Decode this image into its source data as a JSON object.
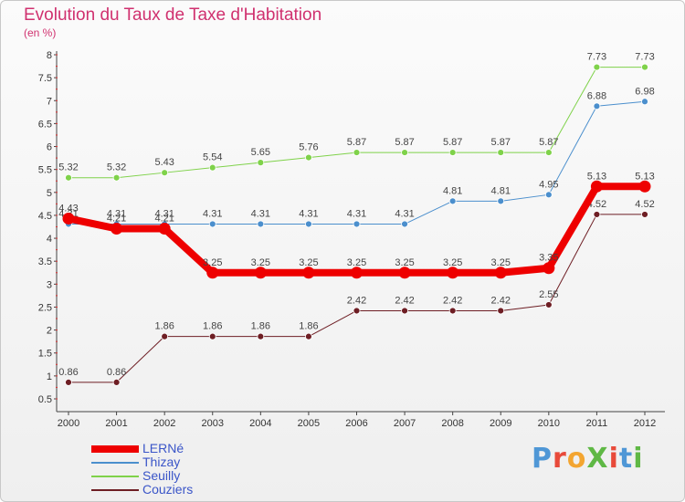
{
  "title": "Evolution du Taux de Taxe d'Habitation",
  "subtitle": "(en %)",
  "logo": {
    "text": "ProXiti",
    "letters": [
      {
        "ch": "P",
        "color": "#4f97d6"
      },
      {
        "ch": "r",
        "color": "#e84a3a"
      },
      {
        "ch": "o",
        "color": "#f3a531"
      },
      {
        "ch": "X",
        "color": "#5fb845"
      },
      {
        "ch": "i",
        "color": "#e84a3a"
      },
      {
        "ch": "t",
        "color": "#4f97d6"
      },
      {
        "ch": "i",
        "color": "#5fb845"
      }
    ]
  },
  "chart_data": {
    "type": "line",
    "title": "Evolution du Taux de Taxe d'Habitation",
    "ylabel": "(en %)",
    "xlabel": "",
    "x": [
      "2000",
      "2001",
      "2002",
      "2003",
      "2004",
      "2005",
      "2006",
      "2007",
      "2008",
      "2009",
      "2010",
      "2011",
      "2012"
    ],
    "ylim": [
      0.5,
      8
    ],
    "yticks": [
      "0.5",
      "1",
      "1.5",
      "2",
      "2.5",
      "3",
      "3.5",
      "4",
      "4.5",
      "5",
      "5.5",
      "6",
      "6.5",
      "7",
      "7.5",
      "8"
    ],
    "grid": false,
    "legend_position": "bottom-left",
    "series": [
      {
        "name": "Couziers",
        "color": "#6e1e24",
        "width": 1,
        "dot": 3.5,
        "values": [
          0.86,
          0.86,
          1.86,
          1.86,
          1.86,
          1.86,
          2.42,
          2.42,
          2.42,
          2.42,
          2.55,
          4.52,
          4.52
        ],
        "labels": [
          "0.86",
          "0.86",
          "1.86",
          "1.86",
          "1.86",
          "1.86",
          "2.42",
          "2.42",
          "2.42",
          "2.42",
          "2.55",
          "4.52",
          "4.52"
        ]
      },
      {
        "name": "Seuilly",
        "color": "#7fd24a",
        "width": 1,
        "dot": 3.5,
        "values": [
          5.32,
          5.32,
          5.43,
          5.54,
          5.65,
          5.76,
          5.87,
          5.87,
          5.87,
          5.87,
          5.87,
          7.73,
          7.73
        ],
        "labels": [
          "5.32",
          "5.32",
          "5.43",
          "5.54",
          "5.65",
          "5.76",
          "5.87",
          "5.87",
          "5.87",
          "5.87",
          "5.87",
          "7.73",
          "7.73"
        ]
      },
      {
        "name": "Thizay",
        "color": "#4b8fcd",
        "width": 1,
        "dot": 3.5,
        "values": [
          4.31,
          4.31,
          4.31,
          4.31,
          4.31,
          4.31,
          4.31,
          4.31,
          4.81,
          4.81,
          4.95,
          6.88,
          6.98
        ],
        "labels": [
          "4.31",
          "4.31",
          "4.31",
          "4.31",
          "4.31",
          "4.31",
          "4.31",
          "4.31",
          "4.81",
          "4.81",
          "4.95",
          "6.88",
          "6.98"
        ]
      },
      {
        "name": "LERNé",
        "color": "#ee0000",
        "width": 8,
        "dot": 6.5,
        "values": [
          4.43,
          4.21,
          4.21,
          3.25,
          3.25,
          3.25,
          3.25,
          3.25,
          3.25,
          3.25,
          3.35,
          5.13,
          5.13
        ],
        "labels": [
          "4.43",
          "4.21",
          "4.21",
          "3.25",
          "3.25",
          "3.25",
          "3.25",
          "3.25",
          "3.25",
          "3.25",
          "3.35",
          "5.13",
          "5.13"
        ]
      }
    ],
    "legend_order": [
      "LERNé",
      "Thizay",
      "Seuilly",
      "Couziers"
    ]
  }
}
